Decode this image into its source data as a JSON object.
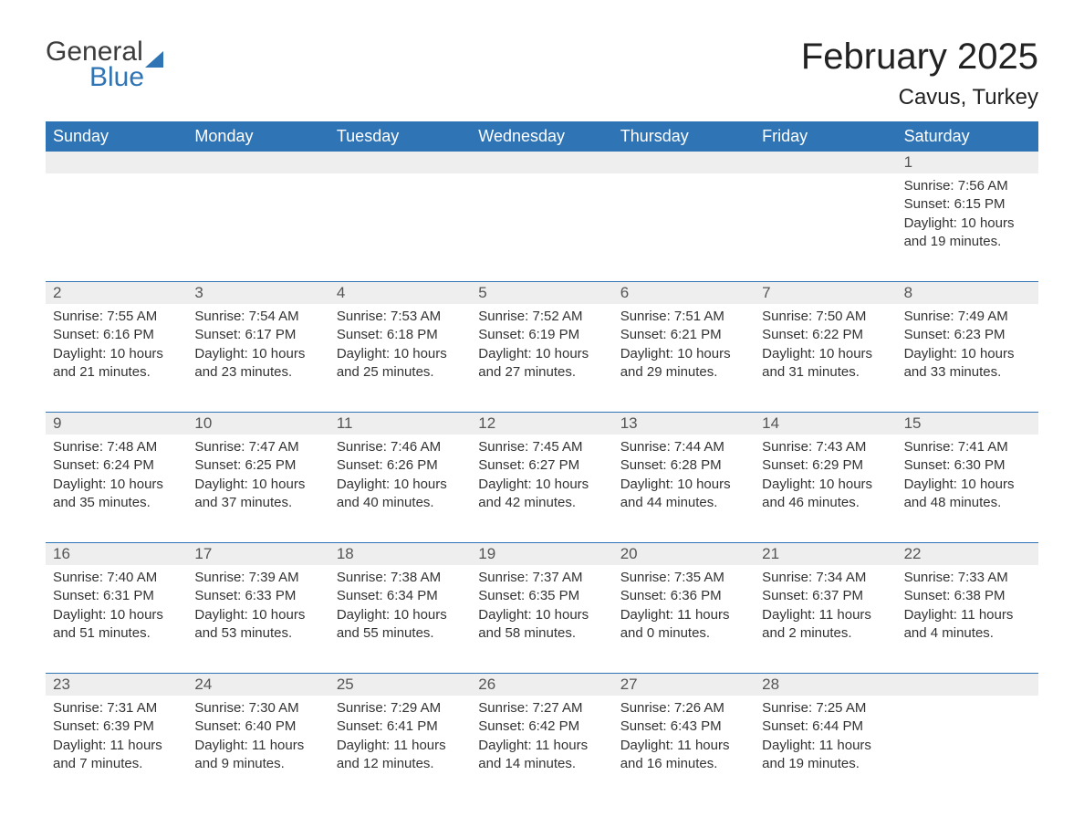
{
  "logo": {
    "word1": "General",
    "word2": "Blue"
  },
  "title": "February 2025",
  "location": "Cavus, Turkey",
  "colors": {
    "header_bg": "#2f74b5",
    "header_text": "#ffffff",
    "daynum_bg": "#eeeeee",
    "body_text": "#333333",
    "accent": "#2f74b5"
  },
  "font": {
    "family": "Arial",
    "title_size": 40,
    "location_size": 24,
    "header_size": 18,
    "body_size": 15
  },
  "day_headers": [
    "Sunday",
    "Monday",
    "Tuesday",
    "Wednesday",
    "Thursday",
    "Friday",
    "Saturday"
  ],
  "weeks": [
    {
      "nums": [
        "",
        "",
        "",
        "",
        "",
        "",
        "1"
      ],
      "cells": [
        "",
        "",
        "",
        "",
        "",
        "",
        "Sunrise: 7:56 AM\nSunset: 6:15 PM\nDaylight: 10 hours and 19 minutes."
      ]
    },
    {
      "nums": [
        "2",
        "3",
        "4",
        "5",
        "6",
        "7",
        "8"
      ],
      "cells": [
        "Sunrise: 7:55 AM\nSunset: 6:16 PM\nDaylight: 10 hours and 21 minutes.",
        "Sunrise: 7:54 AM\nSunset: 6:17 PM\nDaylight: 10 hours and 23 minutes.",
        "Sunrise: 7:53 AM\nSunset: 6:18 PM\nDaylight: 10 hours and 25 minutes.",
        "Sunrise: 7:52 AM\nSunset: 6:19 PM\nDaylight: 10 hours and 27 minutes.",
        "Sunrise: 7:51 AM\nSunset: 6:21 PM\nDaylight: 10 hours and 29 minutes.",
        "Sunrise: 7:50 AM\nSunset: 6:22 PM\nDaylight: 10 hours and 31 minutes.",
        "Sunrise: 7:49 AM\nSunset: 6:23 PM\nDaylight: 10 hours and 33 minutes."
      ]
    },
    {
      "nums": [
        "9",
        "10",
        "11",
        "12",
        "13",
        "14",
        "15"
      ],
      "cells": [
        "Sunrise: 7:48 AM\nSunset: 6:24 PM\nDaylight: 10 hours and 35 minutes.",
        "Sunrise: 7:47 AM\nSunset: 6:25 PM\nDaylight: 10 hours and 37 minutes.",
        "Sunrise: 7:46 AM\nSunset: 6:26 PM\nDaylight: 10 hours and 40 minutes.",
        "Sunrise: 7:45 AM\nSunset: 6:27 PM\nDaylight: 10 hours and 42 minutes.",
        "Sunrise: 7:44 AM\nSunset: 6:28 PM\nDaylight: 10 hours and 44 minutes.",
        "Sunrise: 7:43 AM\nSunset: 6:29 PM\nDaylight: 10 hours and 46 minutes.",
        "Sunrise: 7:41 AM\nSunset: 6:30 PM\nDaylight: 10 hours and 48 minutes."
      ]
    },
    {
      "nums": [
        "16",
        "17",
        "18",
        "19",
        "20",
        "21",
        "22"
      ],
      "cells": [
        "Sunrise: 7:40 AM\nSunset: 6:31 PM\nDaylight: 10 hours and 51 minutes.",
        "Sunrise: 7:39 AM\nSunset: 6:33 PM\nDaylight: 10 hours and 53 minutes.",
        "Sunrise: 7:38 AM\nSunset: 6:34 PM\nDaylight: 10 hours and 55 minutes.",
        "Sunrise: 7:37 AM\nSunset: 6:35 PM\nDaylight: 10 hours and 58 minutes.",
        "Sunrise: 7:35 AM\nSunset: 6:36 PM\nDaylight: 11 hours and 0 minutes.",
        "Sunrise: 7:34 AM\nSunset: 6:37 PM\nDaylight: 11 hours and 2 minutes.",
        "Sunrise: 7:33 AM\nSunset: 6:38 PM\nDaylight: 11 hours and 4 minutes."
      ]
    },
    {
      "nums": [
        "23",
        "24",
        "25",
        "26",
        "27",
        "28",
        ""
      ],
      "cells": [
        "Sunrise: 7:31 AM\nSunset: 6:39 PM\nDaylight: 11 hours and 7 minutes.",
        "Sunrise: 7:30 AM\nSunset: 6:40 PM\nDaylight: 11 hours and 9 minutes.",
        "Sunrise: 7:29 AM\nSunset: 6:41 PM\nDaylight: 11 hours and 12 minutes.",
        "Sunrise: 7:27 AM\nSunset: 6:42 PM\nDaylight: 11 hours and 14 minutes.",
        "Sunrise: 7:26 AM\nSunset: 6:43 PM\nDaylight: 11 hours and 16 minutes.",
        "Sunrise: 7:25 AM\nSunset: 6:44 PM\nDaylight: 11 hours and 19 minutes.",
        ""
      ]
    }
  ]
}
